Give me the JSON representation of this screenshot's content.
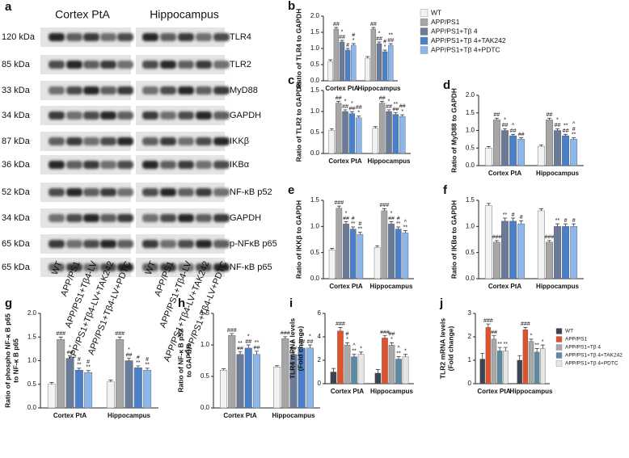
{
  "blot": {
    "panel": "a",
    "headers": [
      "Cortex PtA",
      "Hippocampus"
    ],
    "rows": [
      {
        "kda": "120 kDa",
        "protein": "TLR4"
      },
      {
        "kda": "85 kDa",
        "protein": "TLR2"
      },
      {
        "kda": "33 kDa",
        "protein": "MyD88"
      },
      {
        "kda": "34 kDa",
        "protein": "GAPDH"
      },
      {
        "kda": "87 kDa",
        "protein": "IKKβ"
      },
      {
        "kda": "36 kDa",
        "protein": "IKBα"
      },
      {
        "kda": "52 kDa",
        "protein": "NF-κB p52"
      },
      {
        "kda": "34 kDa",
        "protein": "GAPDH"
      },
      {
        "kda": "65 kDa",
        "protein": "p-NFκB p65"
      },
      {
        "kda": "65 kDa",
        "protein": "NF-κB p65"
      }
    ],
    "lanes": [
      "WT",
      "APP/PS1",
      "APP/PS1+Tβ4-LV",
      "APP/PS1+Tβ4-LV+TAK242",
      "APP/PS1+Tβ4-LV+PDTC"
    ]
  },
  "chart_data": [
    {
      "type": "bar",
      "panel": "b",
      "y_label": [
        "Ratio of TLR4 to GAPDH"
      ],
      "categories": [
        "Cortex PtA",
        "Hippocampus"
      ],
      "ylim": [
        0,
        2
      ],
      "yticks": [
        {
          "value": 0,
          "label": "0.0"
        },
        0.5,
        {
          "value": 1,
          "label": "1.0"
        },
        1.5,
        {
          "value": 2,
          "label": "2.0"
        }
      ],
      "series": [
        {
          "name": "WT",
          "color": "#f2f2f2",
          "values": [
            0.6,
            0.7
          ],
          "errors": [
            0.05,
            0.05
          ],
          "annotations": [
            null,
            null
          ]
        },
        {
          "name": "APP/PS1",
          "color": "#a6a6a6",
          "values": [
            1.6,
            1.6
          ],
          "errors": [
            0.05,
            0.05
          ],
          "annotations": [
            [
              "##"
            ],
            [
              "##"
            ]
          ]
        },
        {
          "name": "APP/PS1+Tβ 4",
          "color": "#6a7a99",
          "values": [
            1.2,
            1.15
          ],
          "errors": [
            0.05,
            0.05
          ],
          "annotations": [
            [
              "*",
              "##"
            ],
            [
              "*",
              "##"
            ]
          ]
        },
        {
          "name": "APP/PS1+Tβ 4+TAK242",
          "color": "#4a7fc9",
          "values": [
            0.95,
            0.9
          ],
          "errors": [
            0.05,
            0.05
          ],
          "annotations": [
            [
              "#"
            ],
            [
              "#",
              "*"
            ]
          ]
        },
        {
          "name": "APP/PS1+Tβ 4+PDTC",
          "color": "#8db6ea",
          "values": [
            1.1,
            1.1
          ],
          "errors": [
            0.05,
            0.05
          ],
          "annotations": [
            [
              "#",
              "*"
            ],
            [
              "**",
              "##"
            ]
          ]
        }
      ]
    },
    {
      "type": "bar",
      "panel": "c",
      "y_label": [
        "Ratio of TLR2 to GAPDH"
      ],
      "categories": [
        "Cortex PtA",
        "Hippocampus"
      ],
      "ylim": [
        0,
        1.5
      ],
      "yticks": [
        {
          "value": 0,
          "label": "0.0"
        },
        0.5,
        {
          "value": 1,
          "label": "1.0"
        },
        1.5
      ],
      "series": [
        {
          "values": [
            0.55,
            0.6
          ],
          "errors": [
            0.04,
            0.04
          ],
          "annotations": [
            null,
            null
          ]
        },
        {
          "values": [
            1.2,
            1.2
          ],
          "errors": [
            0.04,
            0.04
          ],
          "annotations": [
            [
              "##"
            ],
            [
              "##"
            ]
          ]
        },
        {
          "values": [
            1.0,
            1.0
          ],
          "errors": [
            0.04,
            0.04
          ],
          "annotations": [
            [
              "*",
              "##"
            ],
            [
              "*",
              "##"
            ]
          ]
        },
        {
          "values": [
            0.95,
            0.93
          ],
          "errors": [
            0.04,
            0.04
          ],
          "annotations": [
            [
              "*",
              "##"
            ],
            [
              "**",
              "##"
            ]
          ]
        },
        {
          "values": [
            0.85,
            0.88
          ],
          "errors": [
            0.04,
            0.04
          ],
          "annotations": [
            [
              "##",
              "*"
            ],
            [
              "##",
              "*"
            ]
          ]
        }
      ]
    },
    {
      "type": "bar",
      "panel": "d",
      "y_label": [
        "Ratio of MyD88 to GAPDH"
      ],
      "categories": [
        "Cortex PtA",
        "Hippocampus"
      ],
      "ylim": [
        0,
        2
      ],
      "yticks": [
        {
          "value": 0,
          "label": "0.0"
        },
        0.5,
        {
          "value": 1,
          "label": "1.0"
        },
        1.5,
        {
          "value": 2,
          "label": "2.0"
        }
      ],
      "series": [
        {
          "values": [
            0.5,
            0.55
          ],
          "errors": [
            0.04,
            0.04
          ],
          "annotations": [
            null,
            null
          ]
        },
        {
          "values": [
            1.3,
            1.3
          ],
          "errors": [
            0.05,
            0.05
          ],
          "annotations": [
            [
              "##"
            ],
            [
              "##"
            ]
          ]
        },
        {
          "values": [
            1.0,
            1.0
          ],
          "errors": [
            0.05,
            0.05
          ],
          "annotations": [
            [
              "*",
              "##"
            ],
            [
              "*",
              "##"
            ]
          ]
        },
        {
          "values": [
            0.85,
            0.85
          ],
          "errors": [
            0.04,
            0.04
          ],
          "annotations": [
            [
              "^",
              "##"
            ],
            [
              "**",
              "##"
            ]
          ]
        },
        {
          "values": [
            0.75,
            0.75
          ],
          "errors": [
            0.04,
            0.04
          ],
          "annotations": [
            [
              "##"
            ],
            [
              "^",
              "#",
              "**"
            ]
          ]
        }
      ]
    },
    {
      "type": "bar",
      "panel": "e",
      "y_label": [
        "Ratio of IKKβ  to GAPDH"
      ],
      "categories": [
        "Cortex PtA",
        "Hippocampus"
      ],
      "ylim": [
        0,
        1.5
      ],
      "yticks": [
        {
          "value": 0,
          "label": "0.0"
        },
        0.5,
        {
          "value": 1,
          "label": "1.0"
        },
        1.5
      ],
      "series": [
        {
          "values": [
            0.55,
            0.6
          ],
          "errors": [
            0.03,
            0.03
          ],
          "annotations": [
            null,
            null
          ]
        },
        {
          "values": [
            1.35,
            1.3
          ],
          "errors": [
            0.04,
            0.04
          ],
          "annotations": [
            [
              "###"
            ],
            [
              "###"
            ]
          ]
        },
        {
          "values": [
            1.05,
            1.05
          ],
          "errors": [
            0.04,
            0.04
          ],
          "annotations": [
            [
              "*",
              "##"
            ],
            [
              "*",
              "##"
            ]
          ]
        },
        {
          "values": [
            0.95,
            0.95
          ],
          "errors": [
            0.04,
            0.04
          ],
          "annotations": [
            [
              "#",
              "**"
            ],
            [
              "#",
              "**"
            ]
          ]
        },
        {
          "values": [
            0.85,
            0.88
          ],
          "errors": [
            0.04,
            0.04
          ],
          "annotations": [
            [
              "#",
              "**"
            ],
            [
              "^",
              "**"
            ]
          ]
        }
      ]
    },
    {
      "type": "bar",
      "panel": "f",
      "y_label": [
        "Ratio of IKBα  to GAPDH"
      ],
      "categories": [
        "Cortex PtA",
        "Hippocampus"
      ],
      "ylim": [
        0,
        1.5
      ],
      "yticks": [
        {
          "value": 0,
          "label": "0.0"
        },
        0.5,
        {
          "value": 1,
          "label": "1.0"
        },
        1.5
      ],
      "series": [
        {
          "values": [
            1.4,
            1.3
          ],
          "errors": [
            0.04,
            0.04
          ],
          "annotations": [
            null,
            null
          ]
        },
        {
          "values": [
            0.7,
            0.7
          ],
          "errors": [
            0.03,
            0.03
          ],
          "annotations": [
            [
              "###"
            ],
            [
              "###"
            ]
          ]
        },
        {
          "values": [
            1.1,
            1.0
          ],
          "errors": [
            0.06,
            0.05
          ],
          "annotations": [
            [
              "**"
            ],
            [
              "**"
            ]
          ]
        },
        {
          "values": [
            1.1,
            1.0
          ],
          "errors": [
            0.06,
            0.05
          ],
          "annotations": [
            [
              "#"
            ],
            [
              "#"
            ]
          ]
        },
        {
          "values": [
            1.05,
            1.0
          ],
          "errors": [
            0.06,
            0.05
          ],
          "annotations": [
            [
              "#"
            ],
            [
              "#"
            ]
          ]
        }
      ]
    },
    {
      "type": "bar",
      "panel": "g",
      "y_label": [
        "Ratio of phospho NF-κ B p65",
        "to NF-κ B p65"
      ],
      "categories": [
        "Cortex PtA",
        "Hippocampus"
      ],
      "ylim": [
        0,
        2
      ],
      "yticks": [
        {
          "value": 0,
          "label": "0.0"
        },
        0.5,
        {
          "value": 1,
          "label": "1.0"
        },
        1.5,
        {
          "value": 2,
          "label": "2.0"
        }
      ],
      "series": [
        {
          "values": [
            0.5,
            0.55
          ],
          "errors": [
            0.04,
            0.04
          ],
          "annotations": [
            null,
            null
          ]
        },
        {
          "values": [
            1.45,
            1.45
          ],
          "errors": [
            0.05,
            0.05
          ],
          "annotations": [
            [
              "###"
            ],
            [
              "###"
            ]
          ]
        },
        {
          "values": [
            1.05,
            1.0
          ],
          "errors": [
            0.05,
            0.05
          ],
          "annotations": [
            [
              "*",
              "##"
            ],
            [
              "*",
              "##"
            ]
          ]
        },
        {
          "values": [
            0.8,
            0.85
          ],
          "errors": [
            0.04,
            0.04
          ],
          "annotations": [
            [
              "#",
              "**"
            ],
            [
              "#",
              "**"
            ]
          ]
        },
        {
          "values": [
            0.75,
            0.8
          ],
          "errors": [
            0.04,
            0.04
          ],
          "annotations": [
            [
              "#",
              "**"
            ],
            [
              "#",
              "**"
            ]
          ]
        }
      ]
    },
    {
      "type": "bar",
      "panel": "h",
      "y_label": [
        "Ratio of NF-κ B p52",
        "to GAPDH"
      ],
      "categories": [
        "Cortex PtA",
        "Hippocampus"
      ],
      "ylim": [
        0,
        1.5
      ],
      "yticks": [
        {
          "value": 0,
          "label": "0.0"
        },
        0.5,
        {
          "value": 1,
          "label": "1.0"
        },
        1.5
      ],
      "series": [
        {
          "values": [
            0.6,
            0.65
          ],
          "errors": [
            0.02,
            0.02
          ],
          "annotations": [
            null,
            null
          ]
        },
        {
          "values": [
            1.15,
            1.1
          ],
          "errors": [
            0.03,
            0.03
          ],
          "annotations": [
            [
              "###"
            ],
            [
              "###"
            ]
          ]
        },
        {
          "values": [
            0.85,
            0.85
          ],
          "errors": [
            0.04,
            0.04
          ],
          "annotations": [
            [
              "**",
              "##"
            ],
            [
              "**",
              "##"
            ]
          ]
        },
        {
          "values": [
            0.95,
            0.95
          ],
          "errors": [
            0.05,
            0.05
          ],
          "annotations": [
            [
              "*",
              "##"
            ],
            [
              "*",
              "##"
            ]
          ]
        },
        {
          "values": [
            0.85,
            0.95
          ],
          "errors": [
            0.05,
            0.05
          ],
          "annotations": [
            [
              "**",
              "##"
            ],
            [
              "*",
              "##"
            ]
          ]
        }
      ]
    },
    {
      "type": "bar",
      "panel": "i",
      "y_label": [
        "TLR4 mRNA levels",
        "(Fold change)"
      ],
      "categories": [
        "Cortex PtA",
        "Hippocampus"
      ],
      "ylim": [
        0,
        6
      ],
      "yticks": [
        0,
        2,
        4,
        6
      ],
      "series": [
        {
          "name": "WT",
          "color": "#3b4452",
          "values": [
            1.0,
            0.9
          ],
          "errors": [
            0.3,
            0.3
          ],
          "annotations": [
            null,
            null
          ]
        },
        {
          "name": "APP/PS1",
          "color": "#e0522b",
          "values": [
            4.5,
            3.9
          ],
          "errors": [
            0.3,
            0.2
          ],
          "annotations": [
            [
              "###"
            ],
            [
              "###"
            ]
          ]
        },
        {
          "name": "APP/PS1+Tβ 4",
          "color": "#a9a9a9",
          "values": [
            3.3,
            3.3
          ],
          "errors": [
            0.2,
            0.2
          ],
          "annotations": [
            [
              "#",
              "*"
            ],
            [
              "##",
              "*"
            ]
          ]
        },
        {
          "name": "APP/PS1+Tβ 4+TAK242",
          "color": "#5b8ba3",
          "values": [
            2.3,
            2.1
          ],
          "errors": [
            0.2,
            0.2
          ],
          "annotations": [
            [
              "^",
              "**"
            ],
            [
              "^",
              "**"
            ]
          ]
        },
        {
          "name": "APP/PS1+Tβ 4+PDTC",
          "color": "#e6e6e6",
          "values": [
            2.5,
            2.3
          ],
          "errors": [
            0.2,
            0.2
          ],
          "annotations": [
            [
              "*"
            ],
            [
              "*"
            ]
          ]
        }
      ]
    },
    {
      "type": "bar",
      "panel": "j",
      "y_label": [
        "TLR2 mRNA levels",
        "(Fold change)"
      ],
      "categories": [
        "Cortex PtA",
        "Hippocampus"
      ],
      "ylim": [
        0,
        3
      ],
      "yticks": [
        0,
        1,
        2,
        3
      ],
      "series": [
        {
          "values": [
            1.05,
            1.0
          ],
          "errors": [
            0.25,
            0.2
          ],
          "annotations": [
            null,
            null
          ]
        },
        {
          "values": [
            2.4,
            2.3
          ],
          "errors": [
            0.15,
            0.1
          ],
          "annotations": [
            [
              "###"
            ],
            [
              "###"
            ]
          ]
        },
        {
          "values": [
            1.9,
            1.8
          ],
          "errors": [
            0.15,
            0.1
          ],
          "annotations": [
            [
              "##"
            ],
            [
              "*"
            ]
          ]
        },
        {
          "values": [
            1.4,
            1.35
          ],
          "errors": [
            0.15,
            0.15
          ],
          "annotations": [
            [
              "**"
            ],
            [
              "**"
            ]
          ]
        },
        {
          "values": [
            1.4,
            1.5
          ],
          "errors": [
            0.15,
            0.15
          ],
          "annotations": [
            [
              "**"
            ],
            [
              "*"
            ]
          ]
        }
      ]
    }
  ]
}
